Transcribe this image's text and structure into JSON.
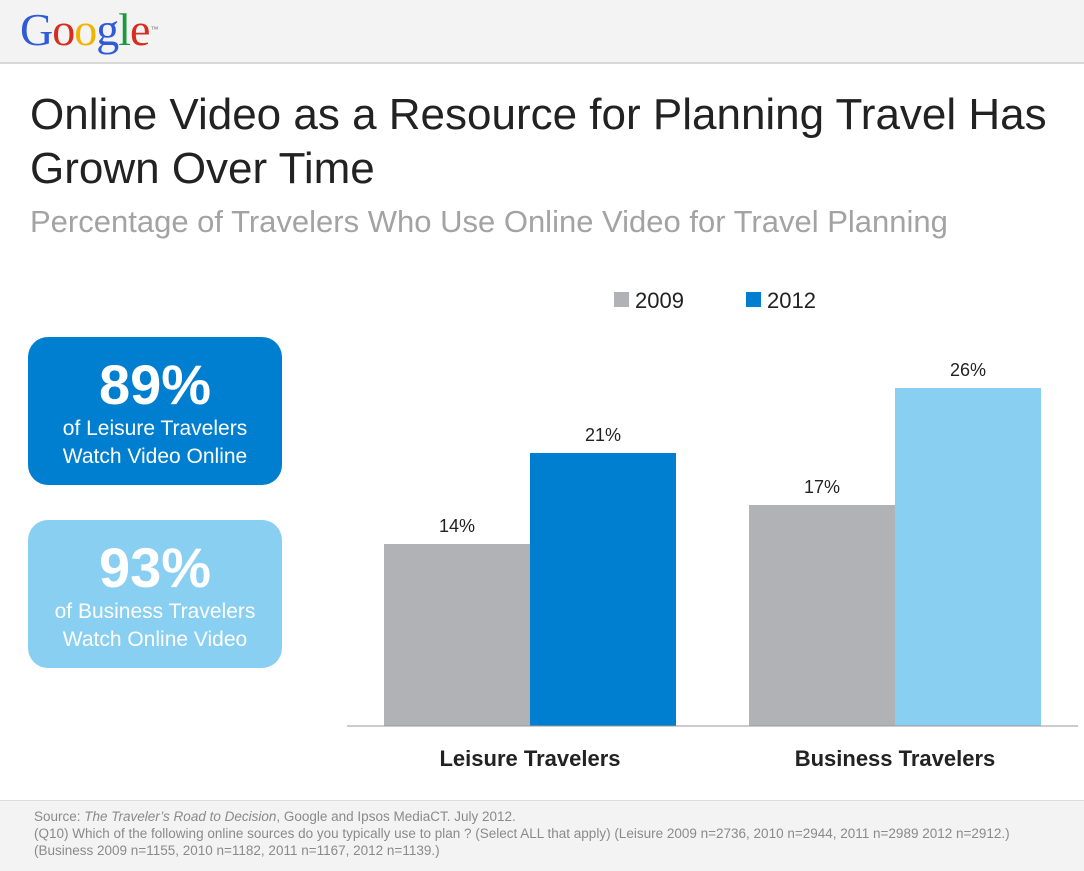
{
  "brand": {
    "logo_letters": [
      {
        "char": "G",
        "color": "#2f5bd6"
      },
      {
        "char": "o",
        "color": "#d62d20"
      },
      {
        "char": "o",
        "color": "#f0b400"
      },
      {
        "char": "g",
        "color": "#2f5bd6"
      },
      {
        "char": "l",
        "color": "#1a9a3a"
      },
      {
        "char": "e",
        "color": "#d62d20"
      }
    ],
    "logo_text": "Google",
    "trademark": "™"
  },
  "title": "Online Video as a Resource for Planning Travel Has Grown Over Time",
  "subtitle": "Percentage of Travelers Who Use Online Video for Travel Planning",
  "stats": {
    "leisure": {
      "value": "89%",
      "caption": "of Leisure Travelers Watch Video Online"
    },
    "business": {
      "value": "93%",
      "caption": "of Business Travelers Watch Online Video"
    }
  },
  "chart_data": {
    "type": "bar",
    "categories": [
      "Leisure Travelers",
      "Business Travelers"
    ],
    "series": [
      {
        "name": "2009",
        "values": [
          14,
          17
        ],
        "labels": [
          "14%",
          "17%"
        ],
        "color": "#b1b2b5"
      },
      {
        "name": "2012",
        "values": [
          21,
          26
        ],
        "labels": [
          "21%",
          "26%"
        ],
        "colors": [
          "#007fd0",
          "#88cff2"
        ]
      }
    ],
    "ylim": [
      0,
      30
    ],
    "unit": "%",
    "legend_position": "top",
    "legend_colors": [
      "#b1b2b5",
      "#007fd0"
    ],
    "grid": false
  },
  "source": {
    "prefix": "Source: ",
    "title": "The Traveler’s Road to Decision",
    "rest": ", Google and Ipsos MediaCT. July 2012.",
    "question": " (Q10) Which of the following online sources do you typically use to plan ? (Select ALL that apply) (Leisure 2009 n=2736, 2010 n=2944, 2011 n=2989 2012 n=2912.) (Business 2009 n=1155, 2010 n=1182, 2011 n=1167, 2012 n=1139.)"
  }
}
